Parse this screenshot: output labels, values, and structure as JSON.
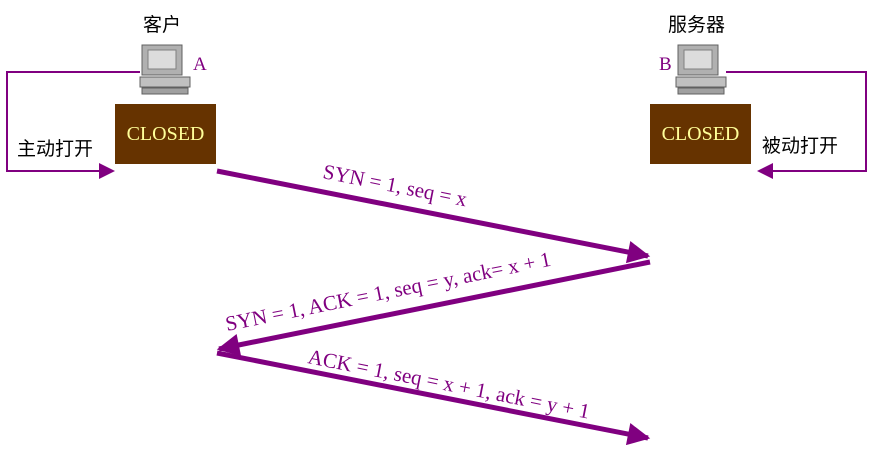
{
  "client": {
    "title": "客户",
    "letter": "A",
    "state": "CLOSED",
    "action": "主动打开"
  },
  "server": {
    "title": "服务器",
    "letter": "B",
    "state": "CLOSED",
    "action": "被动打开"
  },
  "messages": [
    {
      "text": "SYN = 1, seq = x",
      "direction": "client-to-server"
    },
    {
      "text": "SYN = 1, ACK = 1, seq = y, ack= x + 1",
      "direction": "server-to-client"
    },
    {
      "text": "ACK = 1, seq = x + 1, ack = y + 1",
      "direction": "client-to-server"
    }
  ],
  "colors": {
    "arrow": "#800080",
    "state_box": "#663300",
    "state_text": "#ffff99",
    "loop_line": "#800080"
  },
  "icons": {
    "client": "computer-icon",
    "server": "computer-icon"
  }
}
